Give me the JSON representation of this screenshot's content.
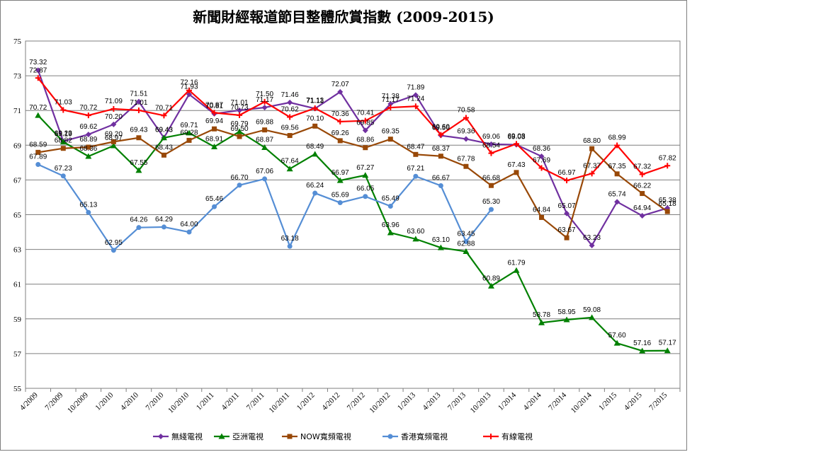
{
  "chart_data": {
    "type": "line",
    "title": "新聞財經報道節目整體欣賞指數 (2009-2015)",
    "xlabel": "",
    "ylabel": "",
    "ylim": [
      55,
      75
    ],
    "yticks": [
      55,
      57,
      59,
      61,
      63,
      65,
      67,
      69,
      71,
      73,
      75
    ],
    "grid": true,
    "legend_position": "bottom",
    "x": [
      "4/2009",
      "7/2009",
      "10/2009",
      "1/2010",
      "4/2010",
      "7/2010",
      "10/2010",
      "1/2011",
      "4/2011",
      "7/2011",
      "10/2011",
      "1/2012",
      "4/2012",
      "7/2012",
      "10/2012",
      "1/2013",
      "4/2013",
      "7/2013",
      "10/2013",
      "1/2014",
      "4/2014",
      "7/2014",
      "10/2014",
      "1/2015",
      "4/2015",
      "7/2015"
    ],
    "series": [
      {
        "name": "無綫電視",
        "color": "#7030a0",
        "marker": "diamond",
        "values": [
          73.32,
          69.23,
          69.62,
          70.2,
          71.51,
          69.43,
          71.93,
          70.81,
          71.01,
          71.17,
          71.46,
          71.11,
          72.07,
          69.85,
          71.38,
          71.89,
          69.56,
          69.36,
          69.06,
          69.03,
          68.36,
          65.07,
          63.23,
          65.74,
          64.94,
          65.38
        ]
      },
      {
        "name": "亞洲電視",
        "color": "#008000",
        "marker": "triangle",
        "values": [
          70.72,
          69.19,
          68.36,
          68.97,
          67.55,
          69.43,
          69.71,
          68.91,
          69.79,
          68.87,
          67.64,
          68.49,
          66.97,
          67.27,
          63.96,
          63.6,
          63.1,
          62.88,
          60.89,
          61.79,
          58.78,
          58.95,
          59.08,
          57.6,
          57.16,
          57.17
        ]
      },
      {
        "name": "NOW寬頻電視",
        "color": "#984807",
        "marker": "square",
        "values": [
          68.59,
          68.82,
          68.89,
          69.2,
          69.43,
          68.43,
          69.28,
          69.94,
          69.5,
          69.88,
          69.56,
          70.1,
          69.26,
          68.86,
          69.35,
          68.47,
          68.37,
          67.78,
          66.68,
          67.43,
          64.84,
          63.67,
          68.8,
          67.35,
          66.22,
          65.18
        ]
      },
      {
        "name": "香港寬頻電視",
        "color": "#558ed5",
        "marker": "circle",
        "values": [
          67.89,
          67.23,
          65.13,
          62.95,
          64.26,
          64.29,
          64.0,
          65.46,
          66.7,
          67.06,
          63.18,
          66.24,
          65.69,
          66.05,
          65.49,
          67.21,
          66.67,
          63.45,
          65.3,
          null,
          null,
          null,
          null,
          null,
          null,
          null
        ]
      },
      {
        "name": "有線電視",
        "color": "#ff0000",
        "marker": "cross",
        "values": [
          72.87,
          71.03,
          70.72,
          71.09,
          71.01,
          70.71,
          72.16,
          70.87,
          70.73,
          71.5,
          70.62,
          71.13,
          70.36,
          70.41,
          71.17,
          71.24,
          69.6,
          70.58,
          68.54,
          69.08,
          67.69,
          66.97,
          67.37,
          68.99,
          67.32,
          67.82
        ]
      }
    ]
  }
}
